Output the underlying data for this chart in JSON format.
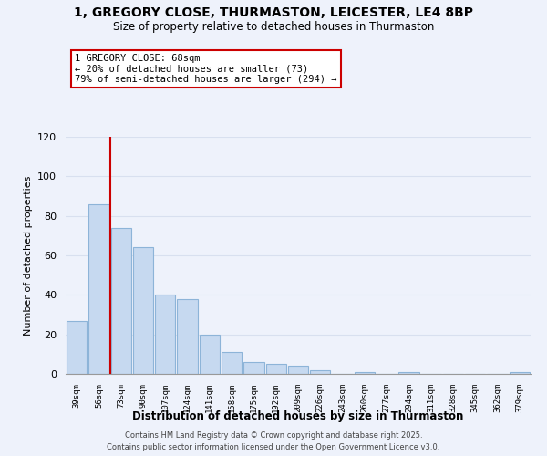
{
  "title_line1": "1, GREGORY CLOSE, THURMASTON, LEICESTER, LE4 8BP",
  "title_line2": "Size of property relative to detached houses in Thurmaston",
  "xlabel": "Distribution of detached houses by size in Thurmaston",
  "ylabel": "Number of detached properties",
  "bar_labels": [
    "39sqm",
    "56sqm",
    "73sqm",
    "90sqm",
    "107sqm",
    "124sqm",
    "141sqm",
    "158sqm",
    "175sqm",
    "192sqm",
    "209sqm",
    "226sqm",
    "243sqm",
    "260sqm",
    "277sqm",
    "294sqm",
    "311sqm",
    "328sqm",
    "345sqm",
    "362sqm",
    "379sqm"
  ],
  "bar_values": [
    27,
    86,
    74,
    64,
    40,
    38,
    20,
    11,
    6,
    5,
    4,
    2,
    0,
    1,
    0,
    1,
    0,
    0,
    0,
    0,
    1
  ],
  "bar_color": "#c6d9f0",
  "bar_edge_color": "#8db4d8",
  "vline_x": 1.5,
  "annotation_title": "1 GREGORY CLOSE: 68sqm",
  "annotation_line2": "← 20% of detached houses are smaller (73)",
  "annotation_line3": "79% of semi-detached houses are larger (294) →",
  "vline_color": "#cc0000",
  "annotation_box_color": "#ffffff",
  "annotation_box_edge": "#cc0000",
  "ylim": [
    0,
    120
  ],
  "yticks": [
    0,
    20,
    40,
    60,
    80,
    100,
    120
  ],
  "footer_line1": "Contains HM Land Registry data © Crown copyright and database right 2025.",
  "footer_line2": "Contains public sector information licensed under the Open Government Licence v3.0.",
  "background_color": "#eef2fb",
  "grid_color": "#d8e0ef"
}
